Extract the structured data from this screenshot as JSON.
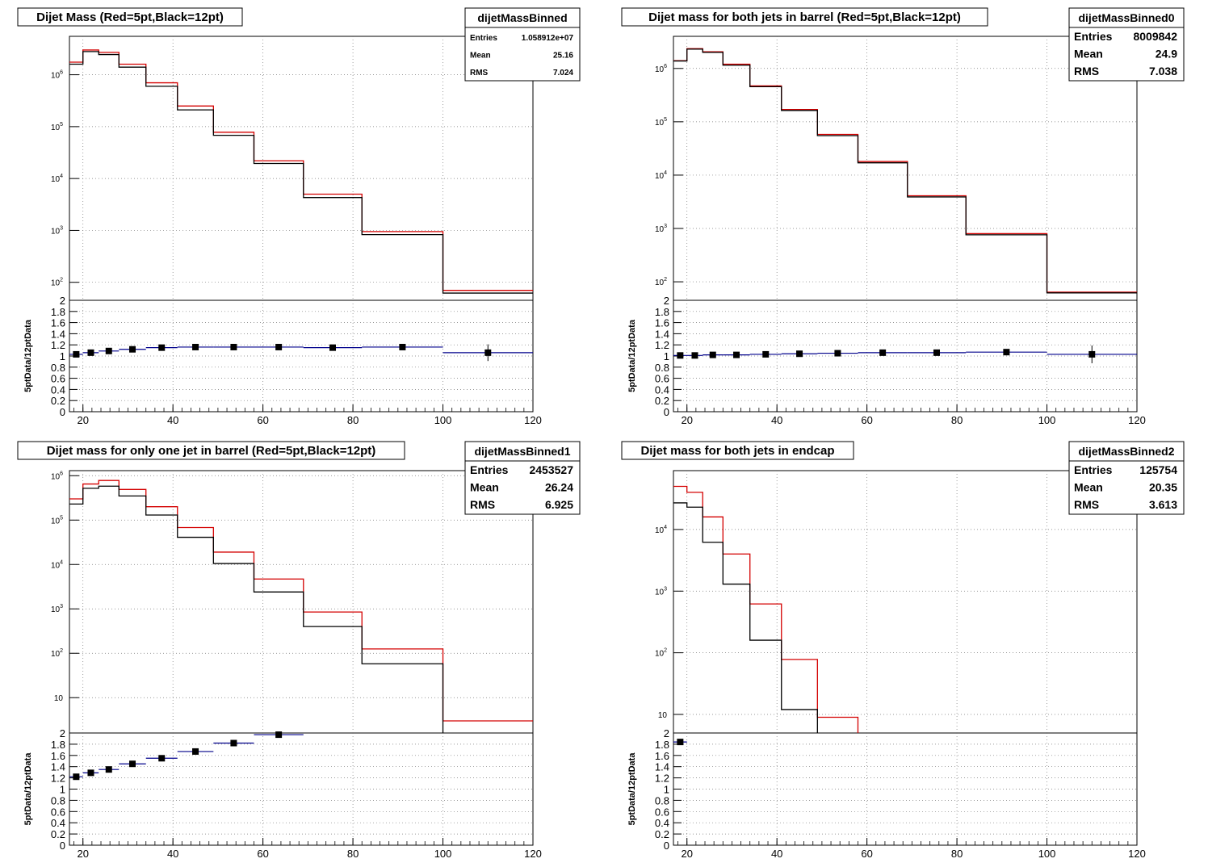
{
  "page": {
    "title": ""
  },
  "chart_data": [
    {
      "type": "histogram",
      "title": "Dijet Mass (Red=5pt,Black=12pt)",
      "stats": {
        "name": "dijetMassBinned",
        "entries_label": "Entries",
        "entries": "1.058912e+07",
        "mean_label": "Mean",
        "mean": "25.16",
        "rms_label": "RMS",
        "rms": "7.024"
      },
      "xlim": [
        17,
        120
      ],
      "log_y": true,
      "ylim_upper": [
        45,
        5500000
      ],
      "ytick_values": [
        100,
        1000,
        10000,
        100000,
        1000000
      ],
      "ytick_labels": [
        "10^2",
        "10^3",
        "10^4",
        "10^5",
        "10^6"
      ],
      "xticks": [
        20,
        40,
        60,
        80,
        100,
        120
      ],
      "bin_edges": [
        17,
        20,
        23.5,
        28,
        34,
        41,
        49,
        58,
        69,
        82,
        100,
        120
      ],
      "series": [
        {
          "name": "Red=5pt",
          "color": "#d40000",
          "values": [
            1750000,
            3000000,
            2700000,
            1600000,
            700000,
            250000,
            78000,
            22000,
            5000,
            950,
            70
          ]
        },
        {
          "name": "Black=12pt",
          "color": "#000000",
          "values": [
            1600000,
            2800000,
            2450000,
            1400000,
            600000,
            210000,
            68000,
            19500,
            4300,
            830,
            62
          ]
        }
      ],
      "ratio": {
        "ylabel": "5ptData/12ptData",
        "ylim": [
          0,
          2
        ],
        "ytick_values": [
          0,
          0.2,
          0.4,
          0.6,
          0.8,
          1,
          1.2,
          1.4,
          1.6,
          1.8,
          2
        ],
        "ytick_labels": [
          "0",
          "0.2",
          "0.4",
          "0.6",
          "0.8",
          "1",
          "1.2",
          "1.4",
          "1.6",
          "1.8",
          "2"
        ],
        "line_color": "#00008b",
        "x": [
          18.5,
          21.75,
          25.75,
          31,
          37.5,
          45,
          53.5,
          63.5,
          75.5,
          91,
          110
        ],
        "values": [
          1.03,
          1.06,
          1.09,
          1.12,
          1.15,
          1.16,
          1.16,
          1.16,
          1.15,
          1.16,
          1.06
        ],
        "errors": [
          0.01,
          0.01,
          0.01,
          0.01,
          0.01,
          0.01,
          0.01,
          0.01,
          0.02,
          0.02,
          0.15
        ]
      }
    },
    {
      "type": "histogram",
      "title": "Dijet mass for both jets in barrel (Red=5pt,Black=12pt)",
      "stats": {
        "name": "dijetMassBinned0",
        "entries_label": "Entries",
        "entries": "8009842",
        "mean_label": "Mean",
        "mean": "24.9",
        "rms_label": "RMS",
        "rms": "7.038"
      },
      "xlim": [
        17,
        120
      ],
      "log_y": true,
      "ylim_upper": [
        45,
        4000000
      ],
      "ytick_values": [
        100,
        1000,
        10000,
        100000,
        1000000
      ],
      "ytick_labels": [
        "10^2",
        "10^3",
        "10^4",
        "10^5",
        "10^6"
      ],
      "xticks": [
        20,
        40,
        60,
        80,
        100,
        120
      ],
      "bin_edges": [
        17,
        20,
        23.5,
        28,
        34,
        41,
        49,
        58,
        69,
        82,
        100,
        120
      ],
      "series": [
        {
          "name": "Red=5pt",
          "color": "#d40000",
          "values": [
            1400000,
            2350000,
            2050000,
            1200000,
            470000,
            170000,
            58000,
            18000,
            4100,
            800,
            64
          ]
        },
        {
          "name": "Black=12pt",
          "color": "#000000",
          "values": [
            1380000,
            2300000,
            2000000,
            1150000,
            455000,
            163000,
            55000,
            17000,
            3900,
            760,
            62
          ]
        }
      ],
      "ratio": {
        "ylabel": "5ptData/12ptData",
        "ylim": [
          0,
          2
        ],
        "ytick_values": [
          0,
          0.2,
          0.4,
          0.6,
          0.8,
          1,
          1.2,
          1.4,
          1.6,
          1.8,
          2
        ],
        "ytick_labels": [
          "0",
          "0.2",
          "0.4",
          "0.6",
          "0.8",
          "1",
          "1.2",
          "1.4",
          "1.6",
          "1.8",
          "2"
        ],
        "line_color": "#00008b",
        "x": [
          18.5,
          21.75,
          25.75,
          31,
          37.5,
          45,
          53.5,
          63.5,
          75.5,
          91,
          110
        ],
        "values": [
          1.01,
          1.01,
          1.02,
          1.02,
          1.03,
          1.04,
          1.05,
          1.06,
          1.06,
          1.07,
          1.03
        ],
        "errors": [
          0.01,
          0.01,
          0.01,
          0.01,
          0.01,
          0.01,
          0.01,
          0.01,
          0.02,
          0.02,
          0.16
        ]
      }
    },
    {
      "type": "histogram",
      "title": "Dijet mass for only one jet in barrel (Red=5pt,Black=12pt)",
      "stats": {
        "name": "dijetMassBinned1",
        "entries_label": "Entries",
        "entries": "2453527",
        "mean_label": "Mean",
        "mean": "26.24",
        "rms_label": "RMS",
        "rms": "6.925"
      },
      "xlim": [
        17,
        120
      ],
      "log_y": true,
      "ylim_upper": [
        1.6,
        1300000
      ],
      "ytick_values": [
        10,
        100,
        1000,
        10000,
        100000,
        1000000
      ],
      "ytick_labels": [
        "10",
        "10^2",
        "10^3",
        "10^4",
        "10^5",
        "10^6"
      ],
      "xticks": [
        20,
        40,
        60,
        80,
        100,
        120
      ],
      "bin_edges": [
        17,
        20,
        23.5,
        28,
        34,
        41,
        49,
        58,
        69,
        82,
        100,
        120
      ],
      "series": [
        {
          "name": "Red=5pt",
          "color": "#d40000",
          "values": [
            300000,
            650000,
            780000,
            490000,
            200000,
            68000,
            19000,
            4700,
            850,
            125,
            3
          ]
        },
        {
          "name": "Black=12pt",
          "color": "#000000",
          "values": [
            230000,
            520000,
            580000,
            350000,
            130000,
            41000,
            10500,
            2400,
            400,
            58,
            0
          ]
        }
      ],
      "ratio": {
        "ylabel": "5ptData/12ptData",
        "ylim": [
          0,
          2
        ],
        "ytick_values": [
          0,
          0.2,
          0.4,
          0.6,
          0.8,
          1,
          1.2,
          1.4,
          1.6,
          1.8,
          2
        ],
        "ytick_labels": [
          "0",
          "0.2",
          "0.4",
          "0.6",
          "0.8",
          "1",
          "1.2",
          "1.4",
          "1.6",
          "1.8",
          "2"
        ],
        "line_color": "#00008b",
        "x": [
          18.5,
          21.75,
          25.75,
          31,
          37.5,
          45,
          53.5,
          63.5
        ],
        "values": [
          1.22,
          1.29,
          1.35,
          1.45,
          1.55,
          1.67,
          1.82,
          1.97
        ],
        "errors": [
          0.01,
          0.01,
          0.01,
          0.01,
          0.01,
          0.01,
          0.02,
          0.03
        ]
      }
    },
    {
      "type": "histogram",
      "title": "Dijet mass for both jets in endcap",
      "stats": {
        "name": "dijetMassBinned2",
        "entries_label": "Entries",
        "entries": "125754",
        "mean_label": "Mean",
        "mean": "20.35",
        "rms_label": "RMS",
        "rms": "3.613"
      },
      "xlim": [
        17,
        120
      ],
      "log_y": true,
      "ylim_upper": [
        5,
        90000
      ],
      "ytick_values": [
        10,
        100,
        1000,
        10000
      ],
      "ytick_labels": [
        "10",
        "10^2",
        "10^3",
        "10^4"
      ],
      "xticks": [
        20,
        40,
        60,
        80,
        100,
        120
      ],
      "bin_edges": [
        17,
        20,
        23.5,
        28,
        34,
        41,
        49,
        58,
        69,
        82,
        100,
        120
      ],
      "series": [
        {
          "name": "Red=5pt",
          "color": "#d40000",
          "values": [
            50000,
            40000,
            16000,
            4000,
            620,
            78,
            9,
            0,
            0,
            0,
            0
          ]
        },
        {
          "name": "Black=12pt",
          "color": "#000000",
          "values": [
            27000,
            23000,
            6200,
            1300,
            160,
            12,
            0,
            0,
            0,
            0,
            0
          ]
        }
      ],
      "ratio": {
        "ylabel": "5ptData/12ptData",
        "ylim": [
          0,
          2
        ],
        "ytick_values": [
          0,
          0.2,
          0.4,
          0.6,
          0.8,
          1,
          1.2,
          1.4,
          1.6,
          1.8,
          2
        ],
        "ytick_labels": [
          "0",
          "0.2",
          "0.4",
          "0.6",
          "0.8",
          "1",
          "1.2",
          "1.4",
          "1.6",
          "1.8",
          "2"
        ],
        "line_color": "#00008b",
        "x": [
          18.5
        ],
        "values": [
          1.84
        ],
        "errors": [
          0.01
        ]
      }
    }
  ]
}
